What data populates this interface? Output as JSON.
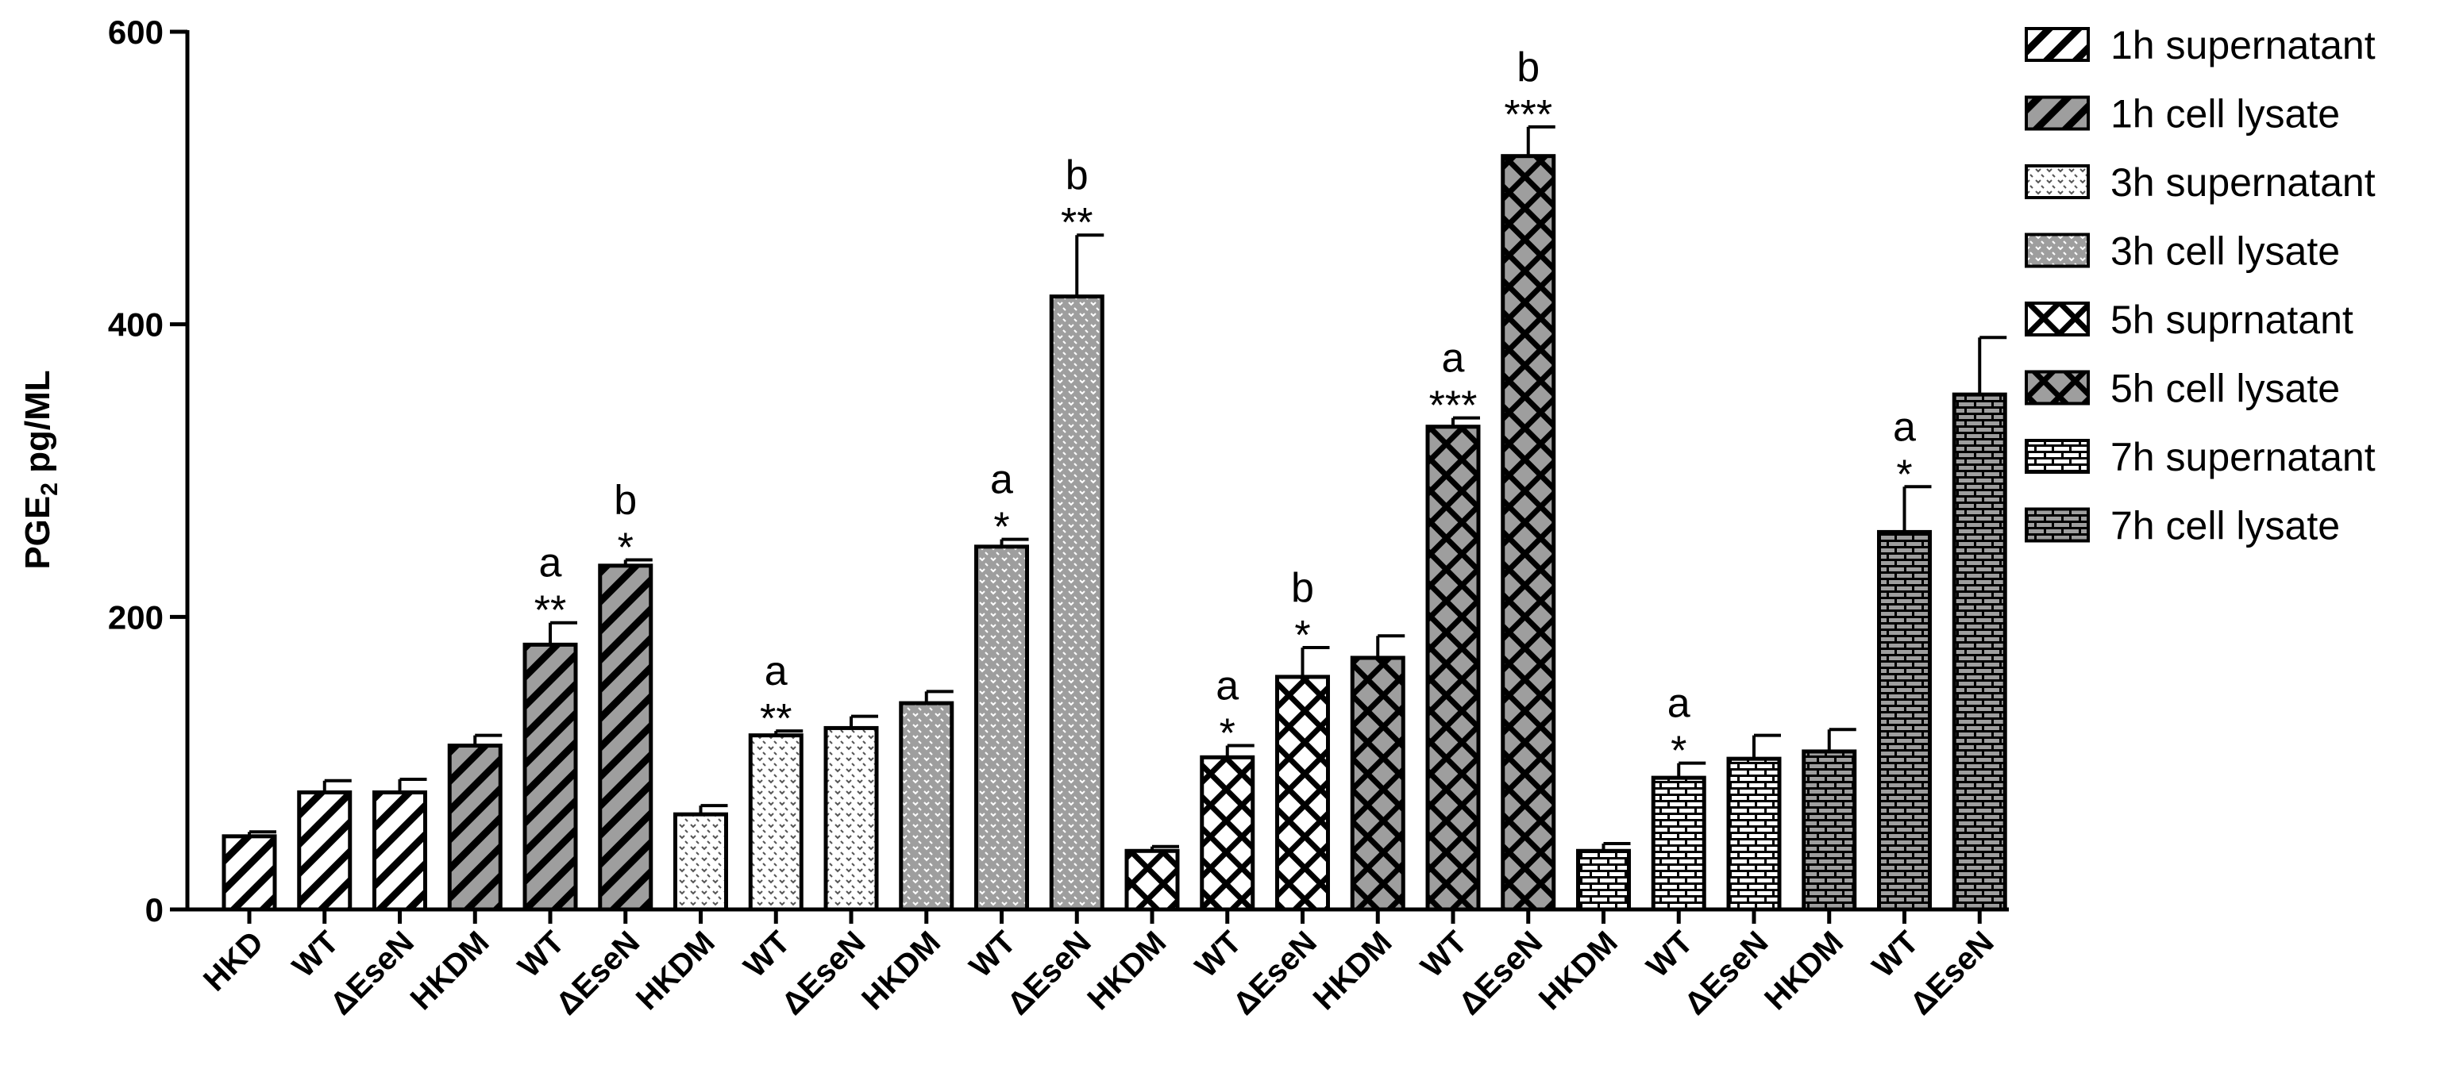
{
  "chart_data": {
    "type": "bar",
    "title": "",
    "xlabel": "",
    "ylabel": "PGE",
    "ylabel_sub": "2",
    "ylabel_suffix": " pg/ML",
    "ylim": [
      0,
      600
    ],
    "yticks": [
      "0",
      "200",
      "400",
      "600"
    ],
    "yticks_values": [
      0,
      200,
      400,
      600
    ],
    "categories": [
      "HKD",
      "WT",
      "ΔEseN",
      "HKDM",
      "WT",
      "ΔEseN",
      "HKDM",
      "WT",
      "ΔEseN",
      "HKDM",
      "WT",
      "ΔEseN",
      "HKDM",
      "WT",
      "ΔEseN",
      "HKDM",
      "WT",
      "ΔEseN",
      "HKDM",
      "WT",
      "ΔEseN",
      "HKDM",
      "WT",
      "ΔEseN"
    ],
    "values": [
      50,
      80,
      80,
      112,
      181,
      235,
      65,
      119,
      124,
      141,
      248,
      419,
      40,
      104,
      159,
      172,
      330,
      515,
      40,
      90,
      103,
      108,
      258,
      352
    ],
    "errors": [
      3,
      8,
      9,
      7,
      15,
      4,
      6,
      3,
      8,
      8,
      5,
      42,
      3,
      8,
      20,
      15,
      6,
      20,
      5,
      10,
      16,
      15,
      31,
      39
    ],
    "bar_series": [
      0,
      0,
      0,
      1,
      1,
      1,
      2,
      2,
      2,
      3,
      3,
      3,
      4,
      4,
      4,
      5,
      5,
      5,
      6,
      6,
      6,
      7,
      7,
      7
    ],
    "stars": [
      "",
      "",
      "",
      "",
      "**",
      "*",
      "",
      "**",
      "",
      "",
      "*",
      "**",
      "",
      "*",
      "*",
      "",
      "***",
      "***",
      "",
      "*",
      "",
      "",
      "*",
      ""
    ],
    "letters": [
      "",
      "",
      "",
      "",
      "a",
      "b",
      "",
      "a",
      "",
      "",
      "a",
      "b",
      "",
      "a",
      "b",
      "",
      "a",
      "b",
      "",
      "a",
      "",
      "",
      "a",
      ""
    ],
    "series": [
      {
        "name": "1h supernatant",
        "pattern": "diag-white"
      },
      {
        "name": "1h cell lysate",
        "pattern": "diag-gray"
      },
      {
        "name": "3h supernatant",
        "pattern": "dots-white"
      },
      {
        "name": "3h cell lysate",
        "pattern": "dots-gray"
      },
      {
        "name": "5h suprnatant",
        "pattern": "cross-white"
      },
      {
        "name": "5h cell lysate",
        "pattern": "cross-gray"
      },
      {
        "name": "7h supernatant",
        "pattern": "brick-white"
      },
      {
        "name": "7h cell lysate",
        "pattern": "brick-gray"
      }
    ],
    "legend_position": "right",
    "colors": {
      "gray_fill": "#9e9e9e",
      "white_fill": "#ffffff",
      "ink": "#000000"
    }
  }
}
